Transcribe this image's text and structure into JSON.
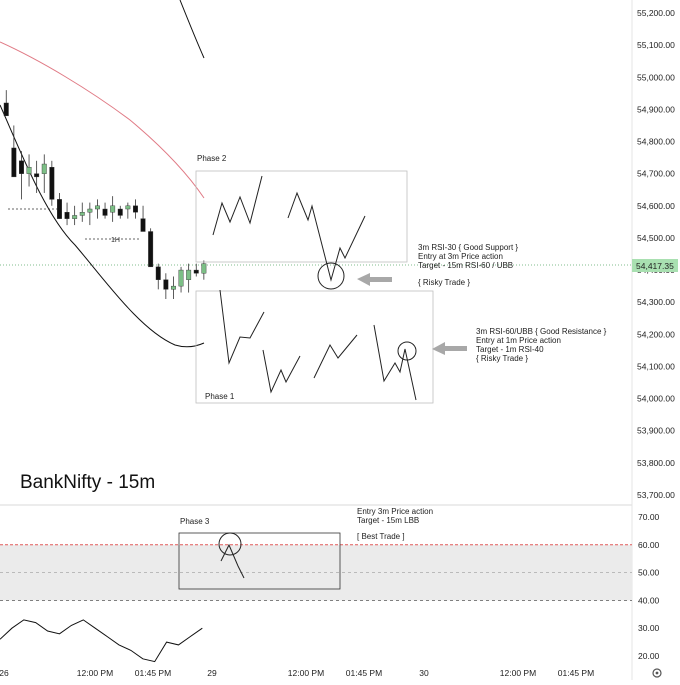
{
  "chart_data": [
    {
      "type": "candlestick",
      "title": "BankNifty - 15m",
      "y_ticks": [
        "55,200.00",
        "55,100.00",
        "55,000.00",
        "54,900.00",
        "54,800.00",
        "54,700.00",
        "54,600.00",
        "54,500.00",
        "54,400.00",
        "54,300.00",
        "54,200.00",
        "54,100.00",
        "54,000.00",
        "53,900.00",
        "53,800.00",
        "53,700.00"
      ],
      "ylim": [
        53700,
        55220
      ],
      "last_price": "54,417.35",
      "candles": [
        {
          "o": 54920,
          "h": 54960,
          "l": 54880,
          "c": 54880
        },
        {
          "o": 54780,
          "h": 54850,
          "l": 54690,
          "c": 54690
        },
        {
          "o": 54740,
          "h": 54770,
          "l": 54620,
          "c": 54700
        },
        {
          "o": 54700,
          "h": 54760,
          "l": 54660,
          "c": 54720
        },
        {
          "o": 54700,
          "h": 54740,
          "l": 54640,
          "c": 54690
        },
        {
          "o": 54700,
          "h": 54760,
          "l": 54640,
          "c": 54730
        },
        {
          "o": 54720,
          "h": 54740,
          "l": 54600,
          "c": 54620
        },
        {
          "o": 54620,
          "h": 54640,
          "l": 54560,
          "c": 54560
        },
        {
          "o": 54580,
          "h": 54610,
          "l": 54540,
          "c": 54560
        },
        {
          "o": 54560,
          "h": 54600,
          "l": 54540,
          "c": 54570
        },
        {
          "o": 54570,
          "h": 54610,
          "l": 54550,
          "c": 54580
        },
        {
          "o": 54580,
          "h": 54610,
          "l": 54540,
          "c": 54590
        },
        {
          "o": 54590,
          "h": 54620,
          "l": 54560,
          "c": 54600
        },
        {
          "o": 54590,
          "h": 54610,
          "l": 54560,
          "c": 54570
        },
        {
          "o": 54580,
          "h": 54630,
          "l": 54550,
          "c": 54600
        },
        {
          "o": 54590,
          "h": 54600,
          "l": 54560,
          "c": 54570
        },
        {
          "o": 54590,
          "h": 54610,
          "l": 54560,
          "c": 54600
        },
        {
          "o": 54600,
          "h": 54620,
          "l": 54560,
          "c": 54580
        },
        {
          "o": 54560,
          "h": 54600,
          "l": 54520,
          "c": 54520
        },
        {
          "o": 54520,
          "h": 54530,
          "l": 54410,
          "c": 54410
        },
        {
          "o": 54410,
          "h": 54420,
          "l": 54340,
          "c": 54370
        },
        {
          "o": 54370,
          "h": 54390,
          "l": 54310,
          "c": 54340
        },
        {
          "o": 54340,
          "h": 54380,
          "l": 54310,
          "c": 54350
        },
        {
          "o": 54350,
          "h": 54410,
          "l": 54330,
          "c": 54400
        },
        {
          "o": 54370,
          "h": 54420,
          "l": 54330,
          "c": 54400
        },
        {
          "o": 54400,
          "h": 54420,
          "l": 54380,
          "c": 54390
        },
        {
          "o": 54390,
          "h": 54430,
          "l": 54370,
          "c": 54420
        }
      ],
      "rsi_ticks": [
        "70.00",
        "60.00",
        "50.00",
        "40.00",
        "30.00",
        "20.00"
      ],
      "rsi_ylim": [
        18,
        72
      ],
      "rsi_series": [
        26,
        30,
        33,
        32,
        29,
        28,
        31,
        33,
        30,
        27,
        24,
        22,
        19,
        18,
        25,
        24,
        27,
        30
      ],
      "x_ticks": [
        "26",
        "12:00 PM",
        "01:45 PM",
        "29",
        "12:00 PM",
        "01:45 PM",
        "30",
        "12:00 PM",
        "01:45 PM"
      ],
      "colors": {
        "up": "#7cbf86",
        "down": "#111111",
        "ma": "#e07a85",
        "band": "#111111",
        "last_price_bg": "#a9e0b1",
        "rsi_band": "#ebebeb",
        "rsi_60": "#e05959"
      }
    }
  ],
  "annotations": {
    "phase2": "Phase 2",
    "phase1": "Phase 1",
    "phase3": "Phase 3",
    "h1_label": "1H",
    "note1": [
      "3m RSI-30 { Good Support }",
      "Entry at 3m Price action",
      "Target - 15m RSI-60 / UBB"
    ],
    "risky1": "{ Risky Trade }",
    "note2": [
      "3m RSI-60/UBB { Good Resistance }",
      "Entry at 1m Price action",
      "Target - 1m RSI-40",
      "{ Risky Trade }"
    ],
    "note3": [
      "Entry 3m Price action",
      "Target - 15m LBB"
    ],
    "best": "[ Best Trade ]"
  },
  "settings_icon": "gear-icon"
}
